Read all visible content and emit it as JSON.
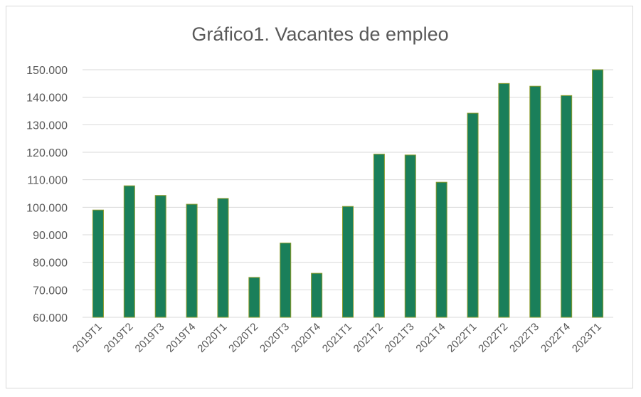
{
  "chart_data": {
    "type": "bar",
    "title": "Gráfico1. Vacantes de empleo",
    "xlabel": "",
    "ylabel": "",
    "categories": [
      "2019T1",
      "2019T2",
      "2019T3",
      "2019T4",
      "2020T1",
      "2020T2",
      "2020T3",
      "2020T4",
      "2021T1",
      "2021T2",
      "2021T3",
      "2021T4",
      "2022T1",
      "2022T2",
      "2022T3",
      "2022T4",
      "2023T1"
    ],
    "values": [
      99000,
      107800,
      104300,
      101100,
      103200,
      74500,
      87000,
      76000,
      100300,
      119300,
      119000,
      109100,
      134200,
      145000,
      144000,
      140600,
      150000
    ],
    "ylim": [
      60000,
      150000
    ],
    "yticks": [
      {
        "value": 60000,
        "label": "60.000"
      },
      {
        "value": 70000,
        "label": "70.000"
      },
      {
        "value": 80000,
        "label": "80.000"
      },
      {
        "value": 90000,
        "label": "90.000"
      },
      {
        "value": 100000,
        "label": "100.000"
      },
      {
        "value": 110000,
        "label": "110.000"
      },
      {
        "value": 120000,
        "label": "120.000"
      },
      {
        "value": 130000,
        "label": "130.000"
      },
      {
        "value": 140000,
        "label": "140.000"
      },
      {
        "value": 150000,
        "label": "150.000"
      }
    ],
    "grid": true,
    "legend": "none",
    "colors": {
      "bar_fill": "#1a7f5a",
      "bar_edge": "#8a9a2a",
      "grid": "#d9d9d9",
      "text": "#595959"
    }
  }
}
